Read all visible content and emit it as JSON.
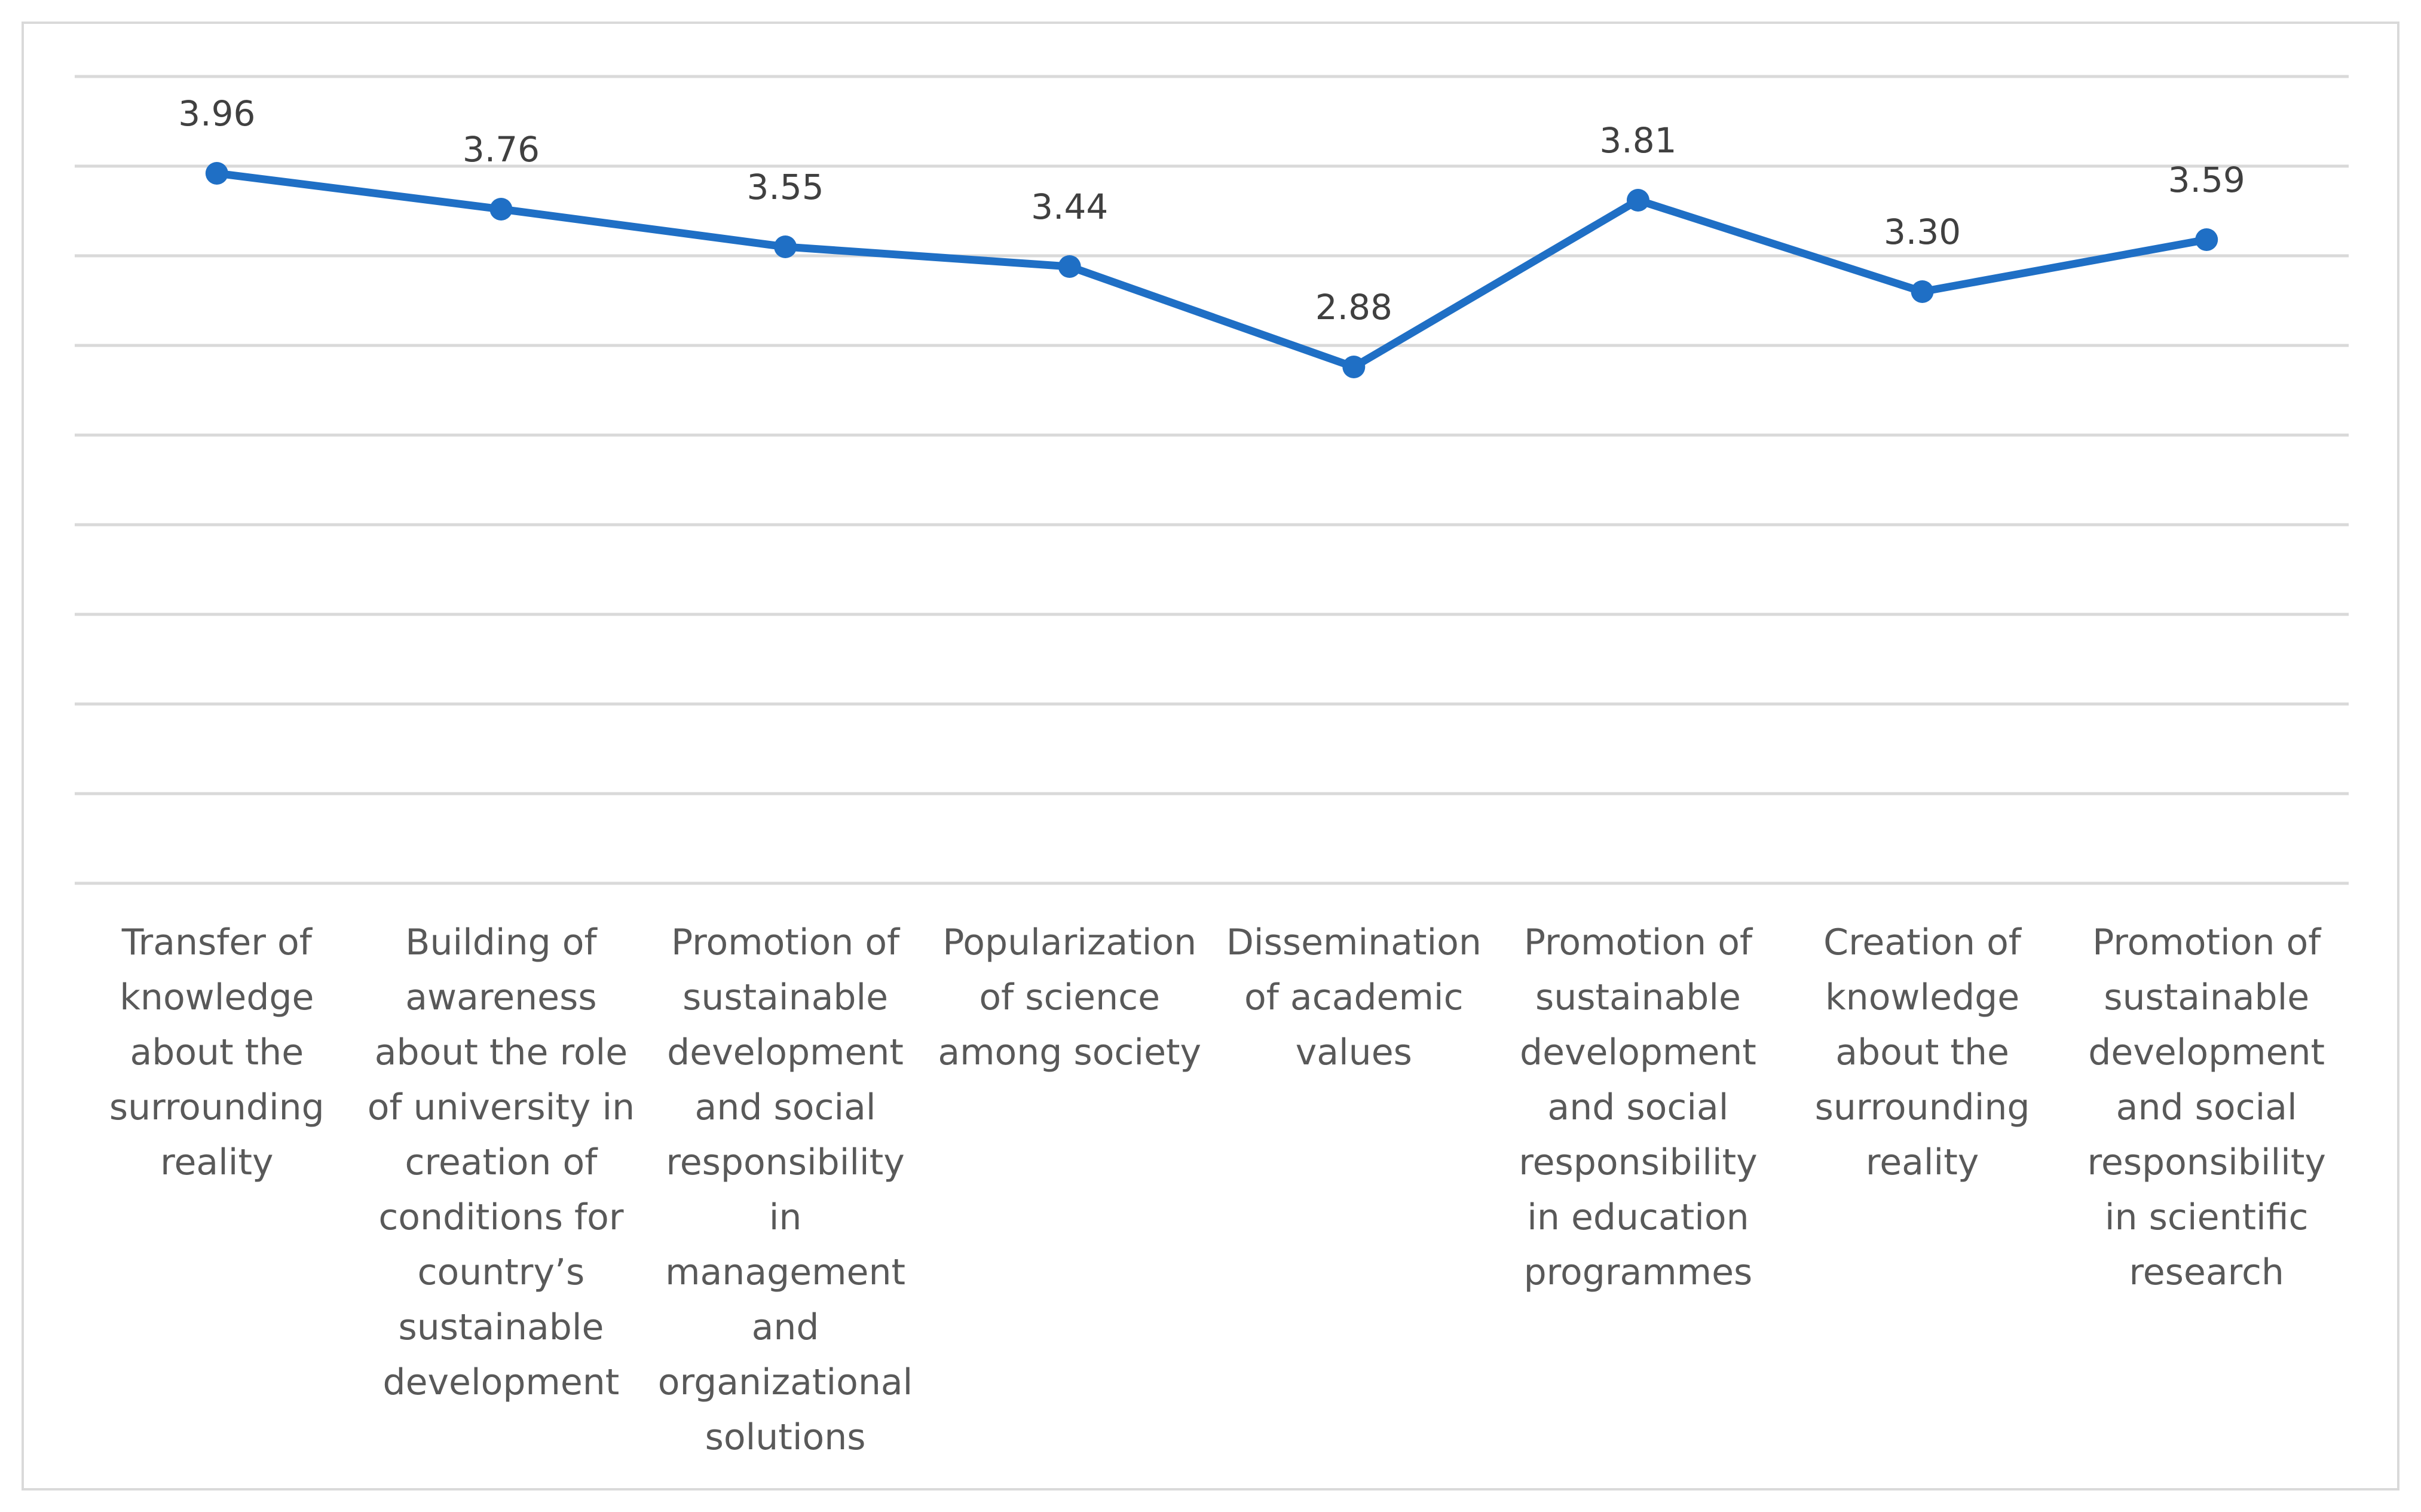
{
  "chart_data": {
    "type": "line",
    "title": "",
    "xlabel": "",
    "ylabel": "",
    "ylim": [
      0,
      4.5
    ],
    "grid": true,
    "legend": "none",
    "series_color": "#1f6fc5",
    "grid_color": "#d9d9d9",
    "categories": [
      "Transfer of knowledge about the surrounding reality",
      "Building of awareness about the role of university in creation of conditions for country’s sustainable development",
      "Promotion of sustainable development and social responsibility in management and organizational solutions",
      "Popularization of science among society",
      "Dissemination of academic values",
      "Promotion of sustainable development and social responsibility in education programmes",
      "Creation of knowledge about the surrounding reality",
      "Promotion of sustainable development and social responsibility in scientific research"
    ],
    "category_lines": [
      [
        "Transfer of",
        "knowledge",
        "about the",
        "surrounding",
        "reality"
      ],
      [
        "Building of",
        "awareness",
        "about the role",
        "of university in",
        "creation of",
        "conditions for",
        "country’s",
        "sustainable",
        "development"
      ],
      [
        "Promotion of",
        "sustainable",
        "development",
        "and social",
        "responsibility",
        "in",
        "management",
        "and",
        "organizational",
        "solutions"
      ],
      [
        "Popularization",
        "of science",
        "among society"
      ],
      [
        "Dissemination",
        "of academic",
        "values"
      ],
      [
        "Promotion of",
        "sustainable",
        "development",
        "and social",
        "responsibility",
        "in education",
        "programmes"
      ],
      [
        "Creation of",
        "knowledge",
        "about the",
        "surrounding",
        "reality"
      ],
      [
        "Promotion of",
        "sustainable",
        "development",
        "and social",
        "responsibility",
        "in scientific",
        "research"
      ]
    ],
    "values": [
      3.96,
      3.76,
      3.55,
      3.44,
      2.88,
      3.81,
      3.3,
      3.59
    ],
    "data_labels": [
      "3.96",
      "3.76",
      "3.55",
      "3.44",
      "2.88",
      "3.81",
      "3.30",
      "3.59"
    ]
  }
}
